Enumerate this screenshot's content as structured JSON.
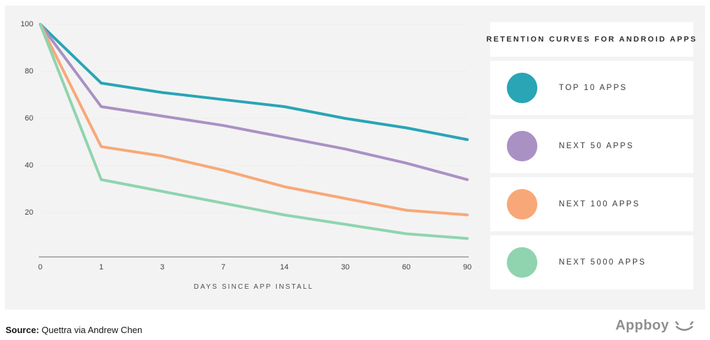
{
  "chart_data": {
    "type": "line",
    "title": "RETENTION CURVES FOR ANDROID APPS",
    "xlabel": "DAYS SINCE APP INSTALL",
    "ylabel": "",
    "categories": [
      0,
      1,
      3,
      7,
      14,
      30,
      60,
      90
    ],
    "y_ticks": [
      20,
      40,
      60,
      80,
      100
    ],
    "ylim": [
      0,
      100
    ],
    "grid": "horizontal-dotted",
    "legend_position": "right",
    "series": [
      {
        "name": "TOP 10 APPS",
        "color": "#29a5b5",
        "values": [
          100,
          75,
          71,
          68,
          65,
          60,
          56,
          51
        ]
      },
      {
        "name": "NEXT 50 APPS",
        "color": "#a991c4",
        "values": [
          100,
          65,
          61,
          57,
          52,
          47,
          41,
          34
        ]
      },
      {
        "name": "NEXT 100 APPS",
        "color": "#f8a878",
        "values": [
          100,
          48,
          44,
          38,
          31,
          26,
          21,
          19
        ]
      },
      {
        "name": "NEXT 5000 APPS",
        "color": "#8fd4af",
        "values": [
          100,
          34,
          29,
          24,
          19,
          15,
          11,
          9
        ]
      }
    ]
  },
  "legend": {
    "title": "RETENTION CURVES FOR ANDROID APPS"
  },
  "footer": {
    "source_label": "Source:",
    "source_text": " Quettra via Andrew Chen",
    "brand": "Appboy"
  },
  "colors": {
    "panel_background": "#f3f3f3",
    "gridline": "#dcdcdc",
    "axis_line": "#9a9a9a",
    "brand_gray": "#8f8f8f"
  }
}
